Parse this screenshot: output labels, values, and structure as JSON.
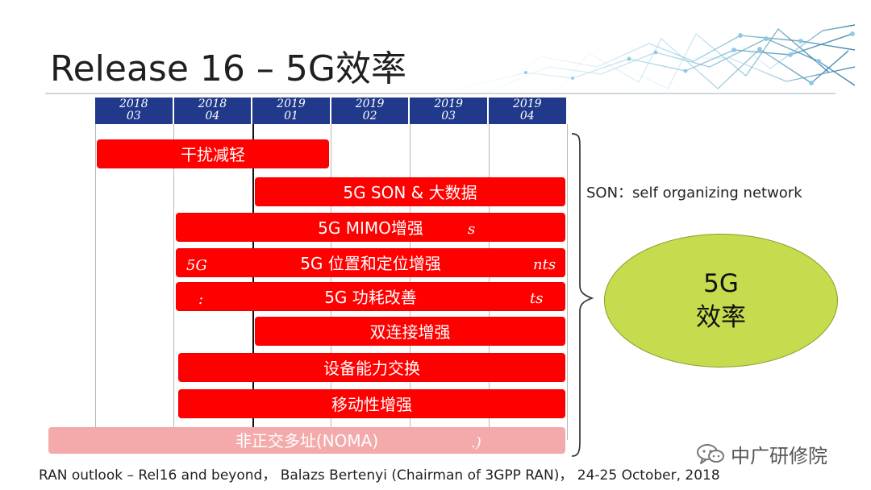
{
  "slide": {
    "title": "Release 16 – 5G效率",
    "quarters": [
      {
        "year": "2018",
        "quarter": "03"
      },
      {
        "year": "2018",
        "quarter": "04"
      },
      {
        "year": "2019",
        "quarter": "01"
      },
      {
        "year": "2019",
        "quarter": "02"
      },
      {
        "year": "2019",
        "quarter": "03"
      },
      {
        "year": "2019",
        "quarter": "04"
      }
    ],
    "timeline_items": [
      {
        "label": "干扰减轻"
      },
      {
        "label": "5G SON & 大数据"
      },
      {
        "label": "5G MIMO增强",
        "fragment": "s"
      },
      {
        "label": "5G 位置和定位增强",
        "left_fragment": "5G",
        "right_fragment": "nts"
      },
      {
        "label": "5G 功耗改善",
        "left_fragment": ":",
        "right_fragment": "ts"
      },
      {
        "label": "双连接增强"
      },
      {
        "label": "设备能力交换"
      },
      {
        "label": "移动性增强"
      },
      {
        "label": "非正交多址(NOMA)",
        "fragment": ".)"
      }
    ],
    "son_note": "SON：self organizing network",
    "summary": {
      "line1": "5G",
      "line2": "效率"
    },
    "source": "RAN outlook – Rel16 and beyond， Balazs Bertenyi (Chairman of 3GPP RAN)， 24-25 October, 2018",
    "brand": "中广研修院"
  },
  "colors": {
    "quarter_header": "#20398a",
    "bar": "#ff0000",
    "faded_bar": "#f4aaaa",
    "summary_ellipse": "#c6db4d"
  },
  "icons": [
    "network-pattern-icon",
    "wechat-brand-icon"
  ]
}
